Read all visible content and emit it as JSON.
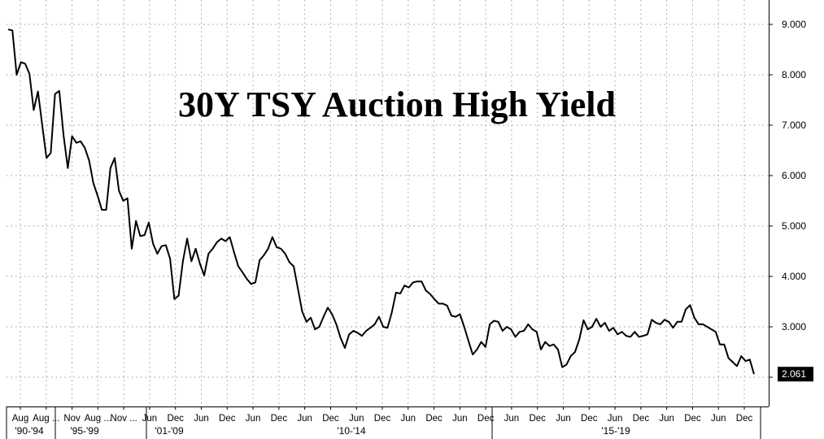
{
  "chart_data": {
    "type": "line",
    "title": "30Y TSY Auction High Yield",
    "ylim": [
      1.6,
      9.4
    ],
    "y_ticks": [
      "2.000",
      "3.000",
      "4.000",
      "5.000",
      "6.000",
      "7.000",
      "8.000",
      "9.000"
    ],
    "last_value_label": "2.061",
    "x_tick_labels": [
      "Aug",
      "Aug ...",
      "Nov",
      "Aug ...",
      "Nov ...",
      "Jun",
      "Dec",
      "Jun",
      "Dec",
      "Jun",
      "Dec",
      "Jun",
      "Dec",
      "Jun",
      "Dec",
      "Jun",
      "Dec",
      "Jun",
      "Dec",
      "Jun",
      "Dec",
      "Jun",
      "Dec",
      "Jun",
      "Dec",
      "Jun",
      "Dec",
      "Jun",
      "Dec"
    ],
    "x_group_labels": [
      "'90-'94",
      "'95-'99",
      "'01-'09",
      "'10-'14",
      "'15-'19"
    ],
    "grid": true,
    "series": [
      {
        "values": [
          8.9,
          8.88,
          8.0,
          8.25,
          8.22,
          8.02,
          7.3,
          7.67,
          7.0,
          6.35,
          6.45,
          7.62,
          7.68,
          6.8,
          6.15,
          6.78,
          6.65,
          6.68,
          6.55,
          6.3,
          5.85,
          5.6,
          5.32,
          5.32,
          6.15,
          6.35,
          5.7,
          5.5,
          5.55,
          4.55,
          5.1,
          4.8,
          4.82,
          5.07,
          4.65,
          4.45,
          4.6,
          4.62,
          4.35,
          3.55,
          3.62,
          4.3,
          4.75,
          4.3,
          4.55,
          4.25,
          4.02,
          4.45,
          4.55,
          4.68,
          4.75,
          4.7,
          4.78,
          4.48,
          4.2,
          4.08,
          3.95,
          3.85,
          3.88,
          4.32,
          4.42,
          4.55,
          4.78,
          4.58,
          4.55,
          4.45,
          4.28,
          4.2,
          3.75,
          3.3,
          3.1,
          3.18,
          2.95,
          3.0,
          3.2,
          3.38,
          3.25,
          3.05,
          2.78,
          2.58,
          2.85,
          2.92,
          2.88,
          2.82,
          2.92,
          2.98,
          3.05,
          3.2,
          3.0,
          2.98,
          3.28,
          3.68,
          3.66,
          3.82,
          3.78,
          3.88,
          3.9,
          3.9,
          3.72,
          3.65,
          3.55,
          3.46,
          3.46,
          3.42,
          3.22,
          3.2,
          3.25,
          3.0,
          2.72,
          2.45,
          2.55,
          2.7,
          2.6,
          3.05,
          3.12,
          3.1,
          2.92,
          3.0,
          2.95,
          2.8,
          2.9,
          2.92,
          3.05,
          2.95,
          2.9,
          2.55,
          2.7,
          2.62,
          2.65,
          2.55,
          2.2,
          2.25,
          2.42,
          2.5,
          2.75,
          3.13,
          2.95,
          3.0,
          3.16,
          3.0,
          3.08,
          2.92,
          2.98,
          2.85,
          2.9,
          2.82,
          2.8,
          2.9,
          2.8,
          2.82,
          2.85,
          3.14,
          3.08,
          3.05,
          3.14,
          3.1,
          2.98,
          3.1,
          3.1,
          3.35,
          3.43,
          3.18,
          3.05,
          3.05,
          3.0,
          2.95,
          2.9,
          2.65,
          2.65,
          2.38,
          2.3,
          2.22,
          2.42,
          2.32,
          2.35,
          2.061
        ]
      }
    ]
  }
}
